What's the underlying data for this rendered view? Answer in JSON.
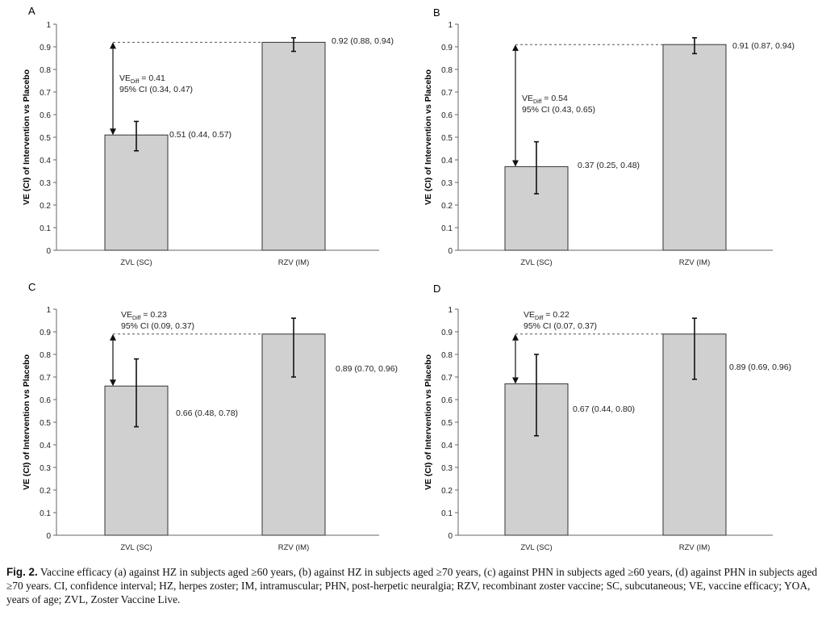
{
  "figure": {
    "caption_label": "Fig. 2.",
    "caption_text": "Vaccine efficacy (a) against HZ in subjects aged ≥60 years, (b) against HZ in subjects aged ≥70 years, (c) against PHN in subjects aged ≥60 years, (d) against PHN in subjects aged ≥70 years. CI, confidence interval; HZ, herpes zoster; IM, intramuscular; PHN, post-herpetic neuralgia; RZV, recombinant zoster vaccine; SC, subcutaneous; VE, vaccine efficacy; YOA, years of age; ZVL, Zoster Vaccine Live."
  },
  "colors": {
    "bar_fill": "#d0d0d0",
    "bar_stroke": "#333333",
    "axis": "#666666"
  },
  "chart_data": [
    {
      "panel": "A",
      "type": "bar",
      "categories": [
        "ZVL (SC)",
        "RZV (IM)"
      ],
      "values": [
        0.51,
        0.92
      ],
      "ci_low": [
        0.44,
        0.88
      ],
      "ci_high": [
        0.57,
        0.94
      ],
      "value_labels": [
        "0.51 (0.44, 0.57)",
        "0.92 (0.88, 0.94)"
      ],
      "ylabel": "VE (CI) of Intervention vs Placebo",
      "ylim": [
        0,
        1
      ],
      "yticks": [
        "0",
        "0.1",
        "0.2",
        "0.3",
        "0.4",
        "0.5",
        "0.6",
        "0.7",
        "0.8",
        "0.9",
        "1"
      ],
      "diff": {
        "ve_prefix": "VE",
        "ve_sub": "Diff",
        "ve_value": " = 0.41",
        "ci_text": "95% CI (0.34, 0.47)"
      }
    },
    {
      "panel": "B",
      "type": "bar",
      "categories": [
        "ZVL (SC)",
        "RZV (IM)"
      ],
      "values": [
        0.37,
        0.91
      ],
      "ci_low": [
        0.25,
        0.87
      ],
      "ci_high": [
        0.48,
        0.94
      ],
      "value_labels": [
        "0.37 (0.25, 0.48)",
        "0.91 (0.87, 0.94)"
      ],
      "ylabel": "VE (CI) of Intervention vs Placebo",
      "ylim": [
        0,
        1
      ],
      "yticks": [
        "0",
        "0.1",
        "0.2",
        "0.3",
        "0.4",
        "0.5",
        "0.6",
        "0.7",
        "0.8",
        "0.9",
        "1"
      ],
      "diff": {
        "ve_prefix": "VE",
        "ve_sub": "Diff",
        "ve_value": " = 0.54",
        "ci_text": "95% CI (0.43, 0.65)"
      }
    },
    {
      "panel": "C",
      "type": "bar",
      "categories": [
        "ZVL (SC)",
        "RZV (IM)"
      ],
      "values": [
        0.66,
        0.89
      ],
      "ci_low": [
        0.48,
        0.7
      ],
      "ci_high": [
        0.78,
        0.96
      ],
      "value_labels": [
        "0.66 (0.48, 0.78)",
        "0.89 (0.70, 0.96)"
      ],
      "ylabel": "VE (CI) of Intervention vs Placebo",
      "ylim": [
        0,
        1
      ],
      "yticks": [
        "0",
        "0.1",
        "0.2",
        "0.3",
        "0.4",
        "0.5",
        "0.6",
        "0.7",
        "0.8",
        "0.9",
        "1"
      ],
      "diff": {
        "ve_prefix": "VE",
        "ve_sub": "Diff",
        "ve_value": " = 0.23",
        "ci_text": "95% CI (0.09, 0.37)"
      }
    },
    {
      "panel": "D",
      "type": "bar",
      "categories": [
        "ZVL (SC)",
        "RZV (IM)"
      ],
      "values": [
        0.67,
        0.89
      ],
      "ci_low": [
        0.44,
        0.69
      ],
      "ci_high": [
        0.8,
        0.96
      ],
      "value_labels": [
        "0.67 (0.44, 0.80)",
        "0.89 (0.69, 0.96)"
      ],
      "ylabel": "VE (CI) of Intervention vs Placebo",
      "ylim": [
        0,
        1
      ],
      "yticks": [
        "0",
        "0.1",
        "0.2",
        "0.3",
        "0.4",
        "0.5",
        "0.6",
        "0.7",
        "0.8",
        "0.9",
        "1"
      ],
      "diff": {
        "ve_prefix": "VE",
        "ve_sub": "Diff",
        "ve_value": " = 0.22",
        "ci_text": "95% CI (0.07, 0.37)"
      }
    }
  ]
}
